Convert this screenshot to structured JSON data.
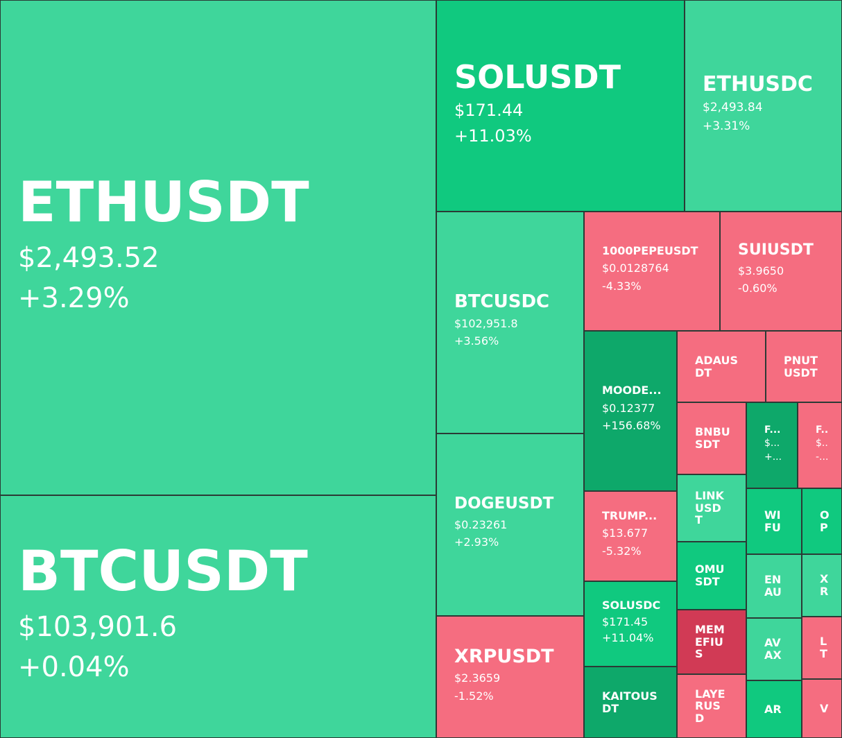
{
  "tiles": [
    {
      "name": "ETHUSDT",
      "price": "$2,493.52",
      "change": "+3.29%"
    },
    {
      "name": "BTCUSDT",
      "price": "$103,901.6",
      "change": "+0.04%"
    },
    {
      "name": "SOLUSDT",
      "price": "$171.44",
      "change": "+11.03%"
    },
    {
      "name": "ETHUSDC",
      "price": "$2,493.84",
      "change": "+3.31%"
    },
    {
      "name": "BTCUSDC",
      "price": "$102,951.8",
      "change": "+3.56%"
    },
    {
      "name": "DOGEUSDT",
      "price": "$0.23261",
      "change": "+2.93%"
    },
    {
      "name": "XRPUSDT",
      "price": "$2.3659",
      "change": "-1.52%"
    },
    {
      "name": "1000PEPEUSDT",
      "price": "$0.0128764",
      "change": "-4.33%"
    },
    {
      "name": "SUIUSDT",
      "price": "$3.9650",
      "change": "-0.60%"
    },
    {
      "name": "MOODE...",
      "price": "$0.12377",
      "change": "+156.68%"
    },
    {
      "name": "ADAUSDT"
    },
    {
      "name": "PNUTUSDT"
    },
    {
      "name": "BNBUSDT"
    },
    {
      "name": "F...",
      "price": "$...",
      "change": "+..."
    },
    {
      "name": "F..",
      "price": "$..",
      "change": "-..."
    },
    {
      "name": "LINKUSDT"
    },
    {
      "name": "WIFU"
    },
    {
      "name": "OP"
    },
    {
      "name": "TRUMP...",
      "price": "$13.677",
      "change": "-5.32%"
    },
    {
      "name": "OMUSDT"
    },
    {
      "name": "ENAU"
    },
    {
      "name": "XR"
    },
    {
      "name": "SOLUSDC",
      "price": "$171.45",
      "change": "+11.04%"
    },
    {
      "name": "MEMEFIUS"
    },
    {
      "name": "AVAX"
    },
    {
      "name": "LT"
    },
    {
      "name": "KAITOUSDT"
    },
    {
      "name": "LAYERUSD"
    },
    {
      "name": "AR"
    },
    {
      "name": "V"
    }
  ]
}
